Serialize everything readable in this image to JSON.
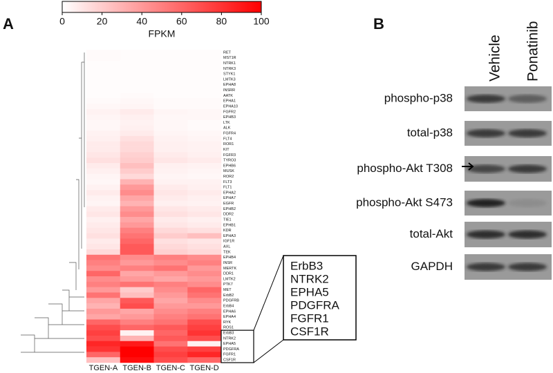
{
  "chart_data": {
    "type": "heatmap",
    "panel_label": "A",
    "colorbar_label": "FPKM",
    "clim": [
      0,
      100
    ],
    "cticks": [
      0,
      20,
      40,
      60,
      80,
      100
    ],
    "low_color": "#ffffff",
    "high_color": "#ff0000",
    "categories": [
      "RET",
      "MST1R",
      "NTRK1",
      "NTRK3",
      "STYK1",
      "LMTK3",
      "EPHA8",
      "INSRR",
      "AATK",
      "EPHA1",
      "EPHA10",
      "FGFR2",
      "EPHB3",
      "LTK",
      "ALK",
      "FGFR4",
      "FLT4",
      "ROR1",
      "KIT",
      "FGFR3",
      "TYRO3",
      "EPHB6",
      "MUSK",
      "ROR2",
      "FLT3",
      "FLT1",
      "EPHA2",
      "EPHA7",
      "EGFR",
      "EPHB2",
      "DDR2",
      "TIE1",
      "EPHB1",
      "KDR",
      "EPHA3",
      "IGF1R",
      "AXL",
      "TEK",
      "EPHB4",
      "INSR",
      "MERTK",
      "DDR1",
      "LMTK2",
      "PTK7",
      "MET",
      "ErbB2",
      "PDGFRB",
      "ErbB4",
      "EPHA6",
      "EPHA4",
      "RYK",
      "ROS1",
      "ErbB3",
      "NTRK2",
      "EPHA5",
      "PDGFRA",
      "FGFR1",
      "CSF1R"
    ],
    "series": [
      {
        "name": "TGEN-A",
        "values": [
          2,
          2,
          1,
          1,
          1,
          1,
          1,
          1,
          1,
          2,
          3,
          5,
          4,
          3,
          3,
          5,
          6,
          8,
          8,
          10,
          12,
          8,
          6,
          4,
          3,
          5,
          8,
          5,
          4,
          8,
          10,
          6,
          8,
          10,
          12,
          8,
          10,
          15,
          55,
          50,
          45,
          60,
          45,
          50,
          40,
          55,
          35,
          30,
          40,
          35,
          60,
          70,
          75,
          70,
          85,
          80,
          60,
          25
        ]
      },
      {
        "name": "TGEN-B",
        "values": [
          1,
          1,
          1,
          1,
          1,
          1,
          1,
          1,
          2,
          3,
          4,
          8,
          6,
          5,
          6,
          8,
          12,
          15,
          15,
          18,
          20,
          25,
          20,
          15,
          30,
          40,
          45,
          35,
          30,
          40,
          45,
          35,
          40,
          50,
          55,
          60,
          65,
          65,
          45,
          40,
          50,
          35,
          40,
          55,
          20,
          25,
          65,
          70,
          35,
          40,
          50,
          60,
          5,
          30,
          90,
          100,
          100,
          95
        ]
      },
      {
        "name": "TGEN-C",
        "values": [
          1,
          1,
          1,
          1,
          1,
          1,
          1,
          1,
          1,
          2,
          2,
          4,
          3,
          3,
          3,
          4,
          5,
          6,
          6,
          8,
          10,
          6,
          5,
          4,
          5,
          8,
          10,
          8,
          6,
          10,
          12,
          8,
          10,
          15,
          20,
          12,
          15,
          18,
          50,
          45,
          55,
          40,
          35,
          50,
          45,
          40,
          35,
          40,
          45,
          50,
          55,
          65,
          60,
          65,
          55,
          70,
          75,
          70
        ]
      },
      {
        "name": "TGEN-D",
        "values": [
          1,
          1,
          1,
          1,
          1,
          1,
          1,
          1,
          1,
          2,
          2,
          3,
          3,
          2,
          2,
          3,
          4,
          5,
          5,
          6,
          8,
          5,
          4,
          3,
          5,
          6,
          8,
          6,
          5,
          8,
          10,
          6,
          8,
          12,
          25,
          10,
          12,
          15,
          45,
          50,
          40,
          45,
          40,
          45,
          60,
          55,
          45,
          40,
          50,
          55,
          70,
          75,
          80,
          70,
          5,
          75,
          85,
          60
        ]
      }
    ],
    "callout_genes": [
      "ErbB3",
      "NTRK2",
      "EPHA5",
      "PDGFRA",
      "FGFR1",
      "CSF1R"
    ]
  },
  "blot": {
    "panel_label": "B",
    "lanes": [
      "Vehicle",
      "Ponatinib"
    ],
    "rows": [
      "phospho-p38",
      "total-p38",
      "phospho-Akt T308",
      "phospho-Akt S473",
      "total-Akt",
      "GAPDH"
    ]
  }
}
